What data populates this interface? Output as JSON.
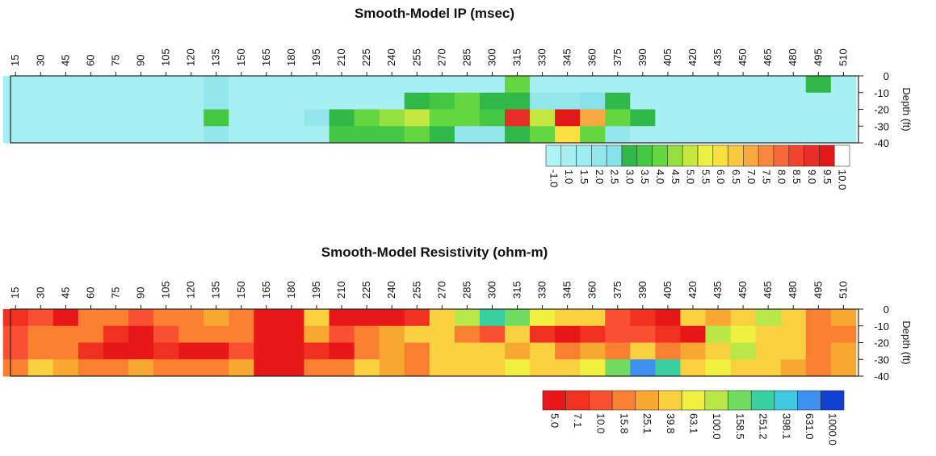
{
  "chart_data": [
    {
      "type": "heatmap",
      "title": "Smooth-Model IP (msec)",
      "ylabel": "Depth (ft)",
      "x": [
        15,
        30,
        45,
        60,
        75,
        90,
        105,
        120,
        135,
        150,
        165,
        180,
        195,
        210,
        225,
        240,
        255,
        270,
        285,
        300,
        315,
        330,
        345,
        360,
        375,
        390,
        405,
        420,
        435,
        450,
        465,
        480,
        495,
        510
      ],
      "y": [
        -5,
        -15,
        -25,
        -35
      ],
      "z": [
        [
          1,
          1,
          1,
          1,
          1,
          1,
          1,
          1,
          2,
          1,
          1,
          1,
          1,
          1,
          1,
          1,
          1,
          1,
          1,
          1,
          4,
          1,
          1,
          1,
          1,
          1,
          1,
          1,
          1,
          1,
          1,
          1,
          3,
          1
        ],
        [
          1,
          1,
          1,
          1,
          1,
          1,
          1,
          1,
          2,
          1,
          1,
          1,
          1,
          1,
          1,
          1,
          3,
          3.5,
          4,
          3,
          3,
          2,
          2,
          2.5,
          3,
          1,
          1,
          1,
          1,
          1,
          1,
          1,
          1,
          1
        ],
        [
          1,
          1,
          1,
          1,
          1,
          1,
          1,
          1,
          3.5,
          1,
          1,
          1,
          2,
          3,
          4,
          4.5,
          5,
          4,
          4,
          3.5,
          9,
          5,
          9.5,
          7,
          4,
          3,
          1,
          1,
          1,
          1,
          1,
          1,
          1,
          1
        ],
        [
          1,
          1,
          1,
          1,
          1,
          1,
          1,
          1,
          2,
          1,
          1,
          1,
          1,
          3.5,
          3.5,
          3.5,
          4,
          3,
          2,
          2,
          3,
          4,
          6,
          4,
          2,
          1,
          1,
          1,
          1,
          1,
          1,
          1,
          1,
          1
        ]
      ],
      "xlim": [
        12,
        519
      ],
      "ylim": [
        -40,
        0
      ],
      "yticks": [
        0,
        -10,
        -20,
        -30,
        -40
      ],
      "colorscale": {
        "levels": [
          {
            "value": -1,
            "label": "-1.0"
          },
          {
            "value": 1,
            "label": "1.0"
          },
          1.5,
          {
            "value": 2,
            "label": "2.0"
          },
          2.5,
          {
            "value": 3,
            "label": "3.0"
          },
          3.5,
          {
            "value": 4,
            "label": "4.0"
          },
          4.5,
          {
            "value": 5,
            "label": "5.0"
          },
          5.5,
          {
            "value": 6,
            "label": "6.0"
          },
          6.5,
          {
            "value": 7,
            "label": "7.0"
          },
          7.5,
          {
            "value": 8,
            "label": "8.0"
          },
          8.5,
          {
            "value": 9,
            "label": "9.0"
          },
          9.5,
          {
            "value": 10,
            "label": "10.0"
          }
        ],
        "colors": [
          "#aef4f6",
          "#a6f0f4",
          "#9cecf0",
          "#92e6ec",
          "#88e0e8",
          "#30b848",
          "#44c844",
          "#64d640",
          "#94e040",
          "#c4e840",
          "#ecf040",
          "#f8e040",
          "#f8c840",
          "#f8a840",
          "#f88840",
          "#f86838",
          "#f04430",
          "#e82c28",
          "#e01818",
          "#ffffff"
        ]
      }
    },
    {
      "type": "heatmap",
      "title": "Smooth-Model Resistivity (ohm-m)",
      "ylabel": "Depth (ft)",
      "x": [
        15,
        30,
        45,
        60,
        75,
        90,
        105,
        120,
        135,
        150,
        165,
        180,
        195,
        210,
        225,
        240,
        255,
        270,
        285,
        300,
        315,
        330,
        345,
        360,
        375,
        390,
        405,
        420,
        435,
        450,
        465,
        480,
        495,
        510
      ],
      "y": [
        -5,
        -15,
        -25,
        -35
      ],
      "z": [
        [
          8,
          15,
          7,
          20,
          25,
          15,
          20,
          25,
          30,
          25,
          7,
          6,
          40,
          6,
          6,
          6,
          8,
          60,
          150,
          300,
          200,
          80,
          60,
          40,
          15,
          8,
          6,
          40,
          30,
          60,
          100,
          60,
          25,
          30
        ],
        [
          10,
          20,
          25,
          20,
          8,
          7,
          15,
          25,
          20,
          25,
          6,
          6,
          30,
          10,
          25,
          30,
          40,
          60,
          20,
          10,
          60,
          8,
          7,
          8,
          10,
          10,
          8,
          6,
          100,
          80,
          60,
          40,
          25,
          20
        ],
        [
          15,
          25,
          20,
          8,
          6,
          7,
          8,
          6,
          6,
          15,
          6,
          5,
          8,
          6,
          25,
          30,
          20,
          40,
          40,
          40,
          30,
          40,
          25,
          30,
          25,
          60,
          25,
          30,
          60,
          100,
          60,
          40,
          25,
          30
        ],
        [
          25,
          40,
          30,
          25,
          20,
          30,
          25,
          20,
          25,
          30,
          6,
          6,
          20,
          25,
          40,
          30,
          20,
          40,
          60,
          60,
          80,
          60,
          60,
          80,
          200,
          800,
          300,
          60,
          80,
          60,
          40,
          30,
          25,
          30
        ]
      ],
      "xlim": [
        12,
        519
      ],
      "ylim": [
        -40,
        0
      ],
      "yticks": [
        0,
        -10,
        -20,
        -30,
        -40
      ],
      "colorscale": {
        "levels": [
          {
            "value": 5,
            "label": "5.0"
          },
          7.1,
          {
            "value": 10,
            "label": "10.0"
          },
          15.8,
          25.1,
          39.8,
          63.1,
          {
            "value": 100,
            "label": "100.0"
          },
          158.5,
          251.2,
          398.1,
          {
            "value": 631,
            "label": "631.0"
          },
          {
            "value": 1000,
            "label": "1000.0"
          }
        ],
        "colors": [
          "#e81818",
          "#f03020",
          "#f85030",
          "#f88030",
          "#f8a830",
          "#f8d040",
          "#f0f040",
          "#b8e848",
          "#70dc60",
          "#38d0a0",
          "#40c8e0",
          "#4090f0",
          "#1040d0"
        ]
      }
    }
  ]
}
